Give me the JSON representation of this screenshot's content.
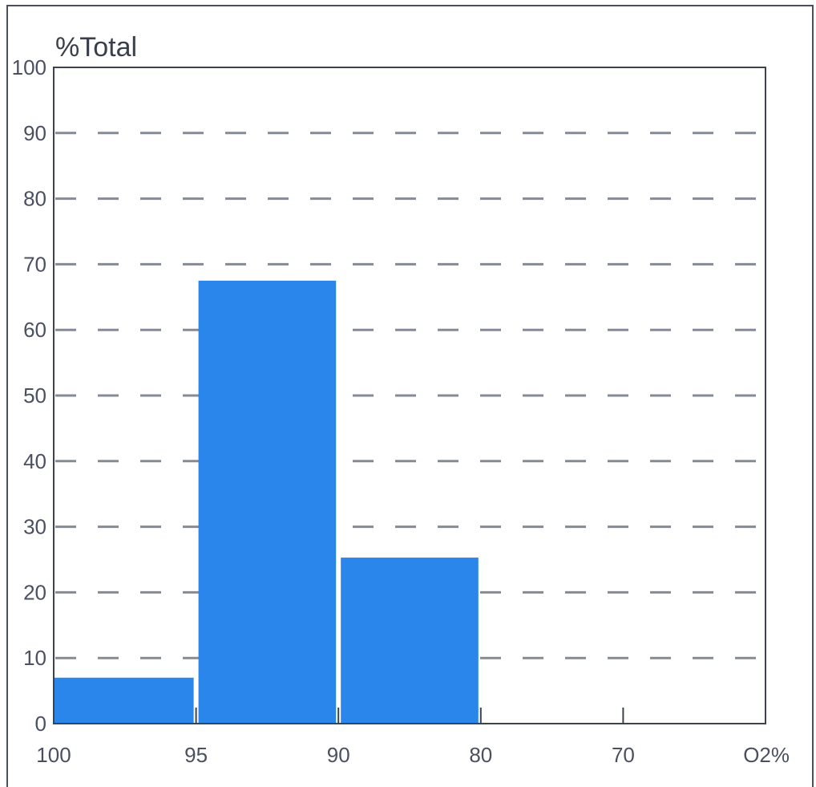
{
  "chart_data": {
    "type": "bar",
    "ylabel": "%Total",
    "xlabel": "",
    "x_ticks": [
      "100",
      "95",
      "90",
      "80",
      "70",
      "O2%"
    ],
    "y_ticks": [
      "0",
      "10",
      "20",
      "30",
      "40",
      "50",
      "60",
      "70",
      "80",
      "90",
      "100"
    ],
    "ylim": [
      0,
      100
    ],
    "bars": [
      {
        "from": "100",
        "to": "95",
        "value": 7
      },
      {
        "from": "95",
        "to": "90",
        "value": 67.5
      },
      {
        "from": "90",
        "to": "80",
        "value": 25.3
      },
      {
        "from": "80",
        "to": "70",
        "value": 0
      },
      {
        "from": "70",
        "to": "O2%",
        "value": 0
      }
    ],
    "grid": "horizontal dashed",
    "bar_color": "#2a86ea",
    "grid_color": "#858b95",
    "axis_color": "#3c4250"
  }
}
